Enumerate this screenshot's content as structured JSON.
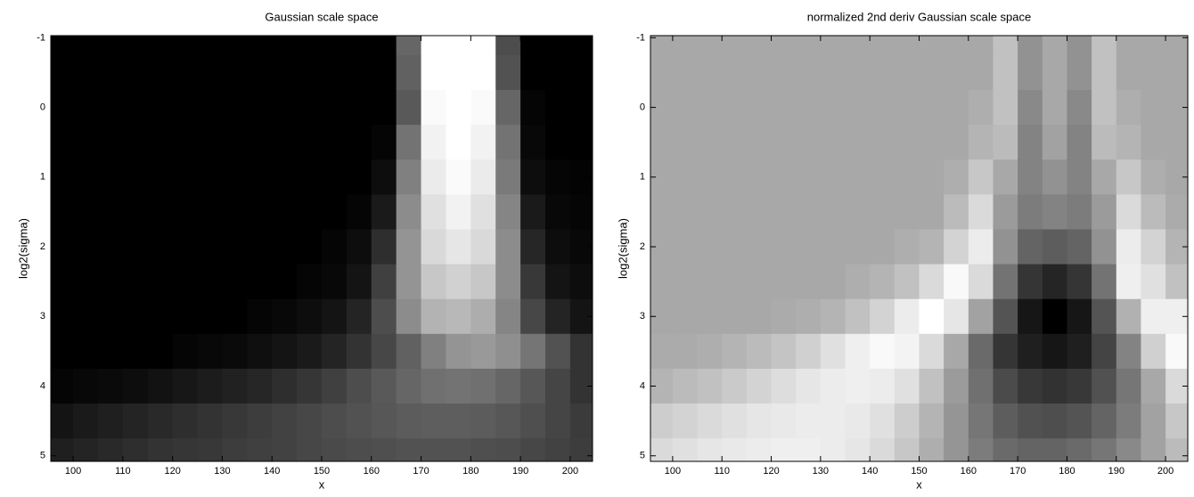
{
  "chart_data": [
    {
      "type": "heatmap",
      "title": "Gaussian scale space",
      "xlabel": "x",
      "ylabel": "log2(sigma)",
      "colormap": "gray",
      "ydir": "reverse",
      "x": [
        97.5,
        102.5,
        107.5,
        112.5,
        117.5,
        122.5,
        127.5,
        132.5,
        137.5,
        142.5,
        147.5,
        152.5,
        157.5,
        162.5,
        167.5,
        172.5,
        177.5,
        182.5,
        187.5,
        192.5,
        197.5,
        202.5
      ],
      "y": [
        -1,
        -0.5,
        0,
        0.5,
        1,
        1.5,
        2,
        2.5,
        3,
        3.5,
        4,
        4.5,
        5
      ],
      "z": [
        [
          0,
          0,
          0,
          0,
          0,
          0,
          0,
          0,
          0,
          0,
          0,
          0,
          0,
          0,
          40,
          100,
          100,
          100,
          30,
          0,
          0,
          0
        ],
        [
          0,
          0,
          0,
          0,
          0,
          0,
          0,
          0,
          0,
          0,
          0,
          0,
          0,
          0,
          38,
          100,
          100,
          100,
          32,
          0,
          0,
          0
        ],
        [
          0,
          0,
          0,
          0,
          0,
          0,
          0,
          0,
          0,
          0,
          0,
          0,
          0,
          0,
          35,
          98,
          100,
          98,
          40,
          2,
          0,
          0
        ],
        [
          0,
          0,
          0,
          0,
          0,
          0,
          0,
          0,
          0,
          0,
          0,
          0,
          0,
          2,
          45,
          95,
          100,
          95,
          45,
          3,
          0,
          0
        ],
        [
          0,
          0,
          0,
          0,
          0,
          0,
          0,
          0,
          0,
          0,
          0,
          0,
          0,
          5,
          50,
          92,
          98,
          92,
          48,
          5,
          2,
          1
        ],
        [
          0,
          0,
          0,
          0,
          0,
          0,
          0,
          0,
          0,
          0,
          0,
          0,
          2,
          10,
          55,
          88,
          95,
          88,
          52,
          10,
          3,
          2
        ],
        [
          0,
          0,
          0,
          0,
          0,
          0,
          0,
          0,
          0,
          0,
          0,
          2,
          5,
          18,
          58,
          85,
          90,
          85,
          55,
          15,
          5,
          3
        ],
        [
          0,
          0,
          0,
          0,
          0,
          0,
          0,
          0,
          0,
          0,
          2,
          3,
          8,
          25,
          58,
          78,
          82,
          78,
          55,
          22,
          8,
          5
        ],
        [
          0,
          0,
          0,
          0,
          0,
          0,
          0,
          0,
          2,
          3,
          5,
          8,
          14,
          30,
          55,
          70,
          72,
          68,
          52,
          28,
          14,
          8
        ],
        [
          0,
          0,
          0,
          0,
          0,
          2,
          3,
          4,
          6,
          8,
          10,
          14,
          20,
          28,
          38,
          50,
          58,
          60,
          56,
          46,
          32,
          20
        ],
        [
          2,
          3,
          4,
          5,
          7,
          9,
          11,
          13,
          15,
          18,
          21,
          25,
          30,
          35,
          40,
          44,
          45,
          44,
          40,
          34,
          27,
          20
        ],
        [
          8,
          10,
          12,
          14,
          16,
          18,
          20,
          22,
          24,
          26,
          28,
          30,
          32,
          34,
          36,
          37,
          37,
          36,
          34,
          31,
          27,
          23
        ],
        [
          12,
          14,
          16,
          18,
          20,
          21,
          22,
          24,
          25,
          26,
          28,
          29,
          30,
          31,
          32,
          32,
          32,
          31,
          30,
          28,
          26,
          24
        ]
      ],
      "xlim": [
        95.5,
        204.5
      ],
      "xticks": [
        100,
        110,
        120,
        130,
        140,
        150,
        160,
        170,
        180,
        190,
        200
      ],
      "ylim": [
        -1.03,
        5.08
      ],
      "yticks": [
        -1,
        0,
        1,
        2,
        3,
        4,
        5
      ]
    },
    {
      "type": "heatmap",
      "title": "normalized 2nd deriv Gaussian scale space",
      "xlabel": "x",
      "ylabel": "log2(sigma)",
      "colormap": "gray",
      "ydir": "reverse",
      "x": [
        97.5,
        102.5,
        107.5,
        112.5,
        117.5,
        122.5,
        127.5,
        132.5,
        137.5,
        142.5,
        147.5,
        152.5,
        157.5,
        162.5,
        167.5,
        172.5,
        177.5,
        182.5,
        187.5,
        192.5,
        197.5,
        202.5
      ],
      "y": [
        -1,
        -0.5,
        0,
        0.5,
        1,
        1.5,
        2,
        2.5,
        3,
        3.5,
        4,
        4.5,
        5
      ],
      "z": [
        [
          62,
          62,
          62,
          62,
          62,
          62,
          62,
          62,
          62,
          62,
          62,
          62,
          62,
          62,
          70,
          55,
          62,
          55,
          70,
          62,
          62,
          62
        ],
        [
          62,
          62,
          62,
          62,
          62,
          62,
          62,
          62,
          62,
          62,
          62,
          62,
          62,
          62,
          70,
          55,
          62,
          55,
          70,
          62,
          62,
          62
        ],
        [
          62,
          62,
          62,
          62,
          62,
          62,
          62,
          62,
          62,
          62,
          62,
          62,
          62,
          64,
          70,
          52,
          62,
          52,
          70,
          64,
          62,
          62
        ],
        [
          62,
          62,
          62,
          62,
          62,
          62,
          62,
          62,
          62,
          62,
          62,
          62,
          62,
          66,
          68,
          50,
          60,
          50,
          68,
          66,
          62,
          62
        ],
        [
          62,
          62,
          62,
          62,
          62,
          62,
          62,
          62,
          62,
          62,
          62,
          62,
          64,
          72,
          62,
          50,
          55,
          50,
          62,
          72,
          64,
          62
        ],
        [
          62,
          62,
          62,
          62,
          62,
          62,
          62,
          62,
          62,
          62,
          62,
          62,
          68,
          78,
          58,
          48,
          50,
          48,
          58,
          78,
          68,
          63
        ],
        [
          62,
          62,
          62,
          62,
          62,
          62,
          62,
          62,
          62,
          62,
          64,
          66,
          76,
          84,
          55,
          40,
          38,
          40,
          55,
          84,
          76,
          66
        ],
        [
          62,
          62,
          62,
          62,
          62,
          62,
          62,
          62,
          64,
          66,
          70,
          78,
          88,
          78,
          45,
          25,
          20,
          25,
          45,
          85,
          80,
          70
        ],
        [
          62,
          62,
          62,
          62,
          62,
          63,
          64,
          66,
          70,
          76,
          84,
          90,
          82,
          60,
          35,
          15,
          8,
          15,
          35,
          65,
          85,
          85
        ],
        [
          63,
          63,
          64,
          66,
          68,
          71,
          75,
          80,
          85,
          88,
          86,
          78,
          62,
          42,
          25,
          18,
          15,
          18,
          30,
          50,
          75,
          88
        ],
        [
          66,
          68,
          70,
          73,
          76,
          79,
          82,
          84,
          85,
          84,
          80,
          70,
          58,
          44,
          32,
          26,
          24,
          26,
          34,
          46,
          62,
          78
        ],
        [
          74,
          76,
          78,
          80,
          82,
          83,
          84,
          84,
          83,
          80,
          74,
          66,
          56,
          46,
          38,
          34,
          33,
          35,
          40,
          48,
          60,
          72
        ],
        [
          78,
          80,
          82,
          83,
          84,
          85,
          85,
          84,
          82,
          78,
          72,
          64,
          56,
          48,
          42,
          40,
          40,
          42,
          46,
          52,
          60,
          68
        ]
      ],
      "xlim": [
        95.5,
        204.5
      ],
      "xticks": [
        100,
        110,
        120,
        130,
        140,
        150,
        160,
        170,
        180,
        190,
        200
      ],
      "ylim": [
        -1.03,
        5.08
      ],
      "yticks": [
        -1,
        0,
        1,
        2,
        3,
        4,
        5
      ]
    }
  ]
}
